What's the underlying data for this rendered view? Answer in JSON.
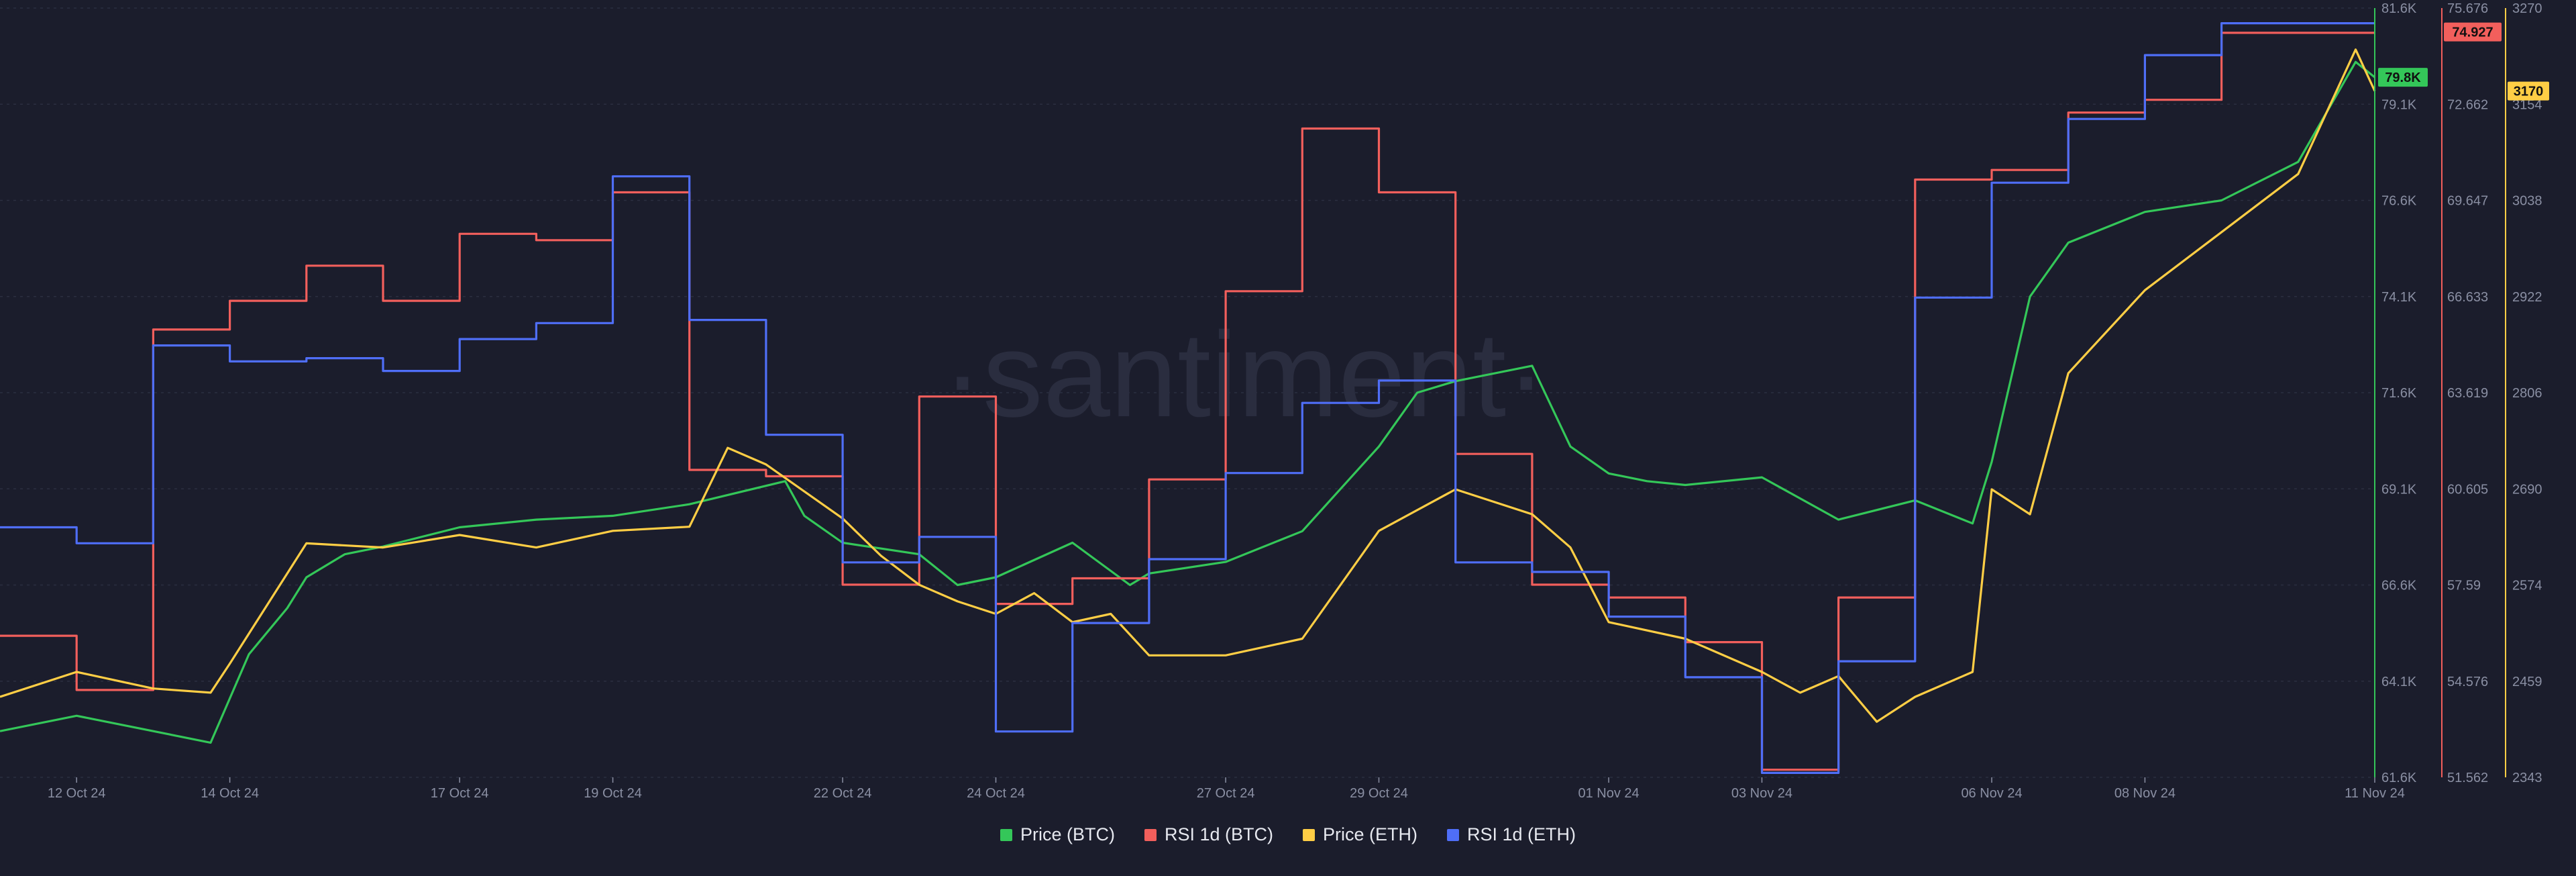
{
  "watermark": "·santiment·",
  "colors": {
    "background": "#1b1d2c",
    "grid": "#2b2e40",
    "axis_text": "#8a8fa3",
    "price_btc": "#34c759",
    "rsi_btc": "#f25f5c",
    "price_eth": "#ffce45",
    "rsi_eth": "#4f6ef7"
  },
  "chart_data": {
    "type": "line",
    "x_start": "2024-10-11",
    "x_end": "2024-11-11",
    "x_ticks": [
      {
        "x": "2024-10-12",
        "label": "12 Oct 24"
      },
      {
        "x": "2024-10-14",
        "label": "14 Oct 24"
      },
      {
        "x": "2024-10-17",
        "label": "17 Oct 24"
      },
      {
        "x": "2024-10-19",
        "label": "19 Oct 24"
      },
      {
        "x": "2024-10-22",
        "label": "22 Oct 24"
      },
      {
        "x": "2024-10-24",
        "label": "24 Oct 24"
      },
      {
        "x": "2024-10-27",
        "label": "27 Oct 24"
      },
      {
        "x": "2024-10-29",
        "label": "29 Oct 24"
      },
      {
        "x": "2024-11-01",
        "label": "01 Nov 24"
      },
      {
        "x": "2024-11-03",
        "label": "03 Nov 24"
      },
      {
        "x": "2024-11-06",
        "label": "06 Nov 24"
      },
      {
        "x": "2024-11-08",
        "label": "08 Nov 24"
      },
      {
        "x": "2024-11-11",
        "label": "11 Nov 24"
      }
    ],
    "axes": {
      "btc_price": {
        "min": 61600,
        "max": 81600,
        "ticks": [
          "61.6K",
          "64.1K",
          "66.6K",
          "69.1K",
          "71.6K",
          "74.1K",
          "76.6K",
          "79.1K",
          "81.6K"
        ],
        "color": "#34c759"
      },
      "rsi": {
        "min": 51.562,
        "max": 75.676,
        "ticks": [
          "51.562",
          "54.576",
          "57.59",
          "60.605",
          "63.619",
          "66.633",
          "69.647",
          "72.662",
          "75.676"
        ],
        "color": "#f25f5c"
      },
      "eth_price": {
        "min": 2343,
        "max": 3270,
        "ticks": [
          "2343",
          "2459",
          "2574",
          "2690",
          "2806",
          "2922",
          "3038",
          "3154",
          "3270"
        ],
        "color": "#ffce45"
      }
    },
    "current_labels": [
      {
        "series": "Price (BTC)",
        "text": "79.8K",
        "value": 79800,
        "color": "#34c759"
      },
      {
        "series": "RSI 1d (BTC)",
        "text": "74.927",
        "value": 74.927,
        "color": "#f25f5c"
      },
      {
        "series": "Price (ETH)",
        "text": "3170",
        "value": 3170,
        "color": "#ffce45"
      }
    ],
    "series": [
      {
        "name": "Price (BTC)",
        "axis": "btc_price",
        "color": "#34c759",
        "step": false,
        "x": [
          "2024-10-11",
          "2024-10-12",
          "2024-10-13",
          "2024-10-13 18:00",
          "2024-10-14 06:00",
          "2024-10-14 18:00",
          "2024-10-15",
          "2024-10-15 12:00",
          "2024-10-16",
          "2024-10-17",
          "2024-10-18",
          "2024-10-19",
          "2024-10-20",
          "2024-10-21 06:00",
          "2024-10-21 12:00",
          "2024-10-22",
          "2024-10-23",
          "2024-10-23 12:00",
          "2024-10-24",
          "2024-10-25",
          "2024-10-25 18:00",
          "2024-10-26",
          "2024-10-27",
          "2024-10-28",
          "2024-10-29",
          "2024-10-29 12:00",
          "2024-10-30",
          "2024-10-31",
          "2024-10-31 12:00",
          "2024-11-01",
          "2024-11-01 12:00",
          "2024-11-02",
          "2024-11-03",
          "2024-11-04",
          "2024-11-05",
          "2024-11-05 18:00",
          "2024-11-06",
          "2024-11-06 12:00",
          "2024-11-07",
          "2024-11-08",
          "2024-11-09",
          "2024-11-10",
          "2024-11-10 18:00",
          "2024-11-11"
        ],
        "y": [
          62800,
          63200,
          62800,
          62500,
          64800,
          66000,
          66800,
          67400,
          67600,
          68100,
          68300,
          68400,
          68700,
          69300,
          68400,
          67700,
          67400,
          66600,
          66800,
          67700,
          66600,
          66900,
          67200,
          68000,
          70200,
          71600,
          71900,
          72300,
          70200,
          69500,
          69300,
          69200,
          69400,
          68300,
          68800,
          68200,
          69800,
          74100,
          75500,
          76300,
          76600,
          77600,
          80200,
          79800
        ]
      },
      {
        "name": "RSI 1d (BTC)",
        "axis": "rsi",
        "color": "#f25f5c",
        "step": true,
        "x": [
          "2024-10-11",
          "2024-10-12",
          "2024-10-13",
          "2024-10-14",
          "2024-10-15",
          "2024-10-16",
          "2024-10-17",
          "2024-10-18",
          "2024-10-19",
          "2024-10-20",
          "2024-10-21",
          "2024-10-22",
          "2024-10-23",
          "2024-10-24",
          "2024-10-25",
          "2024-10-26",
          "2024-10-27",
          "2024-10-28",
          "2024-10-29",
          "2024-10-30",
          "2024-10-31",
          "2024-11-01",
          "2024-11-02",
          "2024-11-03",
          "2024-11-04",
          "2024-11-05",
          "2024-11-06",
          "2024-11-07",
          "2024-11-08",
          "2024-11-09",
          "2024-11-10",
          "2024-11-11"
        ],
        "y": [
          56.0,
          54.3,
          65.6,
          66.5,
          67.6,
          66.5,
          68.6,
          68.4,
          69.9,
          61.2,
          61.0,
          57.6,
          63.5,
          57.0,
          57.8,
          60.9,
          66.8,
          71.9,
          69.9,
          61.7,
          57.6,
          57.2,
          55.8,
          51.8,
          57.2,
          70.3,
          70.6,
          72.4,
          72.8,
          74.9,
          74.9,
          74.9
        ]
      },
      {
        "name": "Price (ETH)",
        "axis": "eth_price",
        "color": "#ffce45",
        "step": false,
        "x": [
          "2024-10-11",
          "2024-10-12",
          "2024-10-13",
          "2024-10-13 18:00",
          "2024-10-14",
          "2024-10-15",
          "2024-10-16",
          "2024-10-17",
          "2024-10-18",
          "2024-10-19",
          "2024-10-20",
          "2024-10-20 12:00",
          "2024-10-21",
          "2024-10-22",
          "2024-10-22 12:00",
          "2024-10-23",
          "2024-10-23 12:00",
          "2024-10-24",
          "2024-10-24 12:00",
          "2024-10-25",
          "2024-10-25 12:00",
          "2024-10-26",
          "2024-10-27",
          "2024-10-28",
          "2024-10-29",
          "2024-10-30",
          "2024-10-31",
          "2024-10-31 12:00",
          "2024-11-01",
          "2024-11-02",
          "2024-11-03",
          "2024-11-03 12:00",
          "2024-11-04",
          "2024-11-04 12:00",
          "2024-11-05",
          "2024-11-05 18:00",
          "2024-11-06",
          "2024-11-06 12:00",
          "2024-11-07",
          "2024-11-08",
          "2024-11-09",
          "2024-11-10",
          "2024-11-10 18:00",
          "2024-11-11"
        ],
        "y": [
          2440,
          2470,
          2450,
          2445,
          2480,
          2625,
          2620,
          2635,
          2620,
          2640,
          2645,
          2740,
          2720,
          2655,
          2610,
          2575,
          2555,
          2540,
          2565,
          2530,
          2540,
          2490,
          2490,
          2510,
          2640,
          2690,
          2660,
          2620,
          2530,
          2510,
          2470,
          2445,
          2465,
          2410,
          2440,
          2470,
          2690,
          2660,
          2830,
          2930,
          3000,
          3070,
          3220,
          3170
        ]
      },
      {
        "name": "RSI 1d (ETH)",
        "axis": "rsi",
        "color": "#4f6ef7",
        "step": true,
        "x": [
          "2024-10-11",
          "2024-10-12",
          "2024-10-13",
          "2024-10-14",
          "2024-10-15",
          "2024-10-16",
          "2024-10-17",
          "2024-10-18",
          "2024-10-19",
          "2024-10-20",
          "2024-10-21",
          "2024-10-22",
          "2024-10-23",
          "2024-10-24",
          "2024-10-25",
          "2024-10-26",
          "2024-10-27",
          "2024-10-28",
          "2024-10-29",
          "2024-10-30",
          "2024-10-31",
          "2024-11-01",
          "2024-11-02",
          "2024-11-03",
          "2024-11-04",
          "2024-11-05",
          "2024-11-06",
          "2024-11-07",
          "2024-11-08",
          "2024-11-09",
          "2024-11-10",
          "2024-11-11"
        ],
        "y": [
          59.4,
          58.9,
          65.1,
          64.6,
          64.7,
          64.3,
          65.3,
          65.8,
          70.4,
          65.9,
          62.3,
          58.3,
          59.1,
          53.0,
          56.4,
          58.4,
          61.1,
          63.3,
          64.0,
          58.3,
          58.0,
          56.6,
          54.7,
          51.7,
          55.2,
          66.6,
          70.2,
          72.2,
          74.2,
          75.2,
          75.2,
          75.2
        ]
      }
    ]
  },
  "legend": [
    {
      "label": "Price (BTC)",
      "color": "#34c759"
    },
    {
      "label": "RSI 1d (BTC)",
      "color": "#f25f5c"
    },
    {
      "label": "Price (ETH)",
      "color": "#ffce45"
    },
    {
      "label": "RSI 1d (ETH)",
      "color": "#4f6ef7"
    }
  ]
}
